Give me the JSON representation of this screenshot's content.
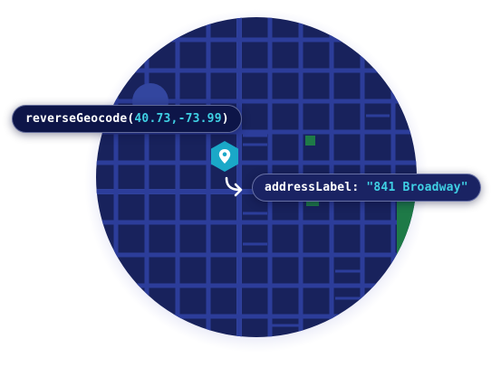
{
  "colors": {
    "map_background": "#18225c",
    "street": "#2c3d9a",
    "street_major": "#33469f",
    "park": "#1e7a47",
    "pin": "#1aa8c8",
    "accent_text": "#3fd0e4",
    "chip_border": "#a8b0dc"
  },
  "icons": {
    "pin": "location-pin-icon",
    "arrow": "curved-arrow-icon"
  },
  "call_chip": {
    "function_name": "reverseGeocode",
    "open_paren": "(",
    "coordinates": "40.73,-73.99",
    "close_paren": ")"
  },
  "result_chip": {
    "key": "addressLabel:",
    "value": "\"841 Broadway\""
  }
}
